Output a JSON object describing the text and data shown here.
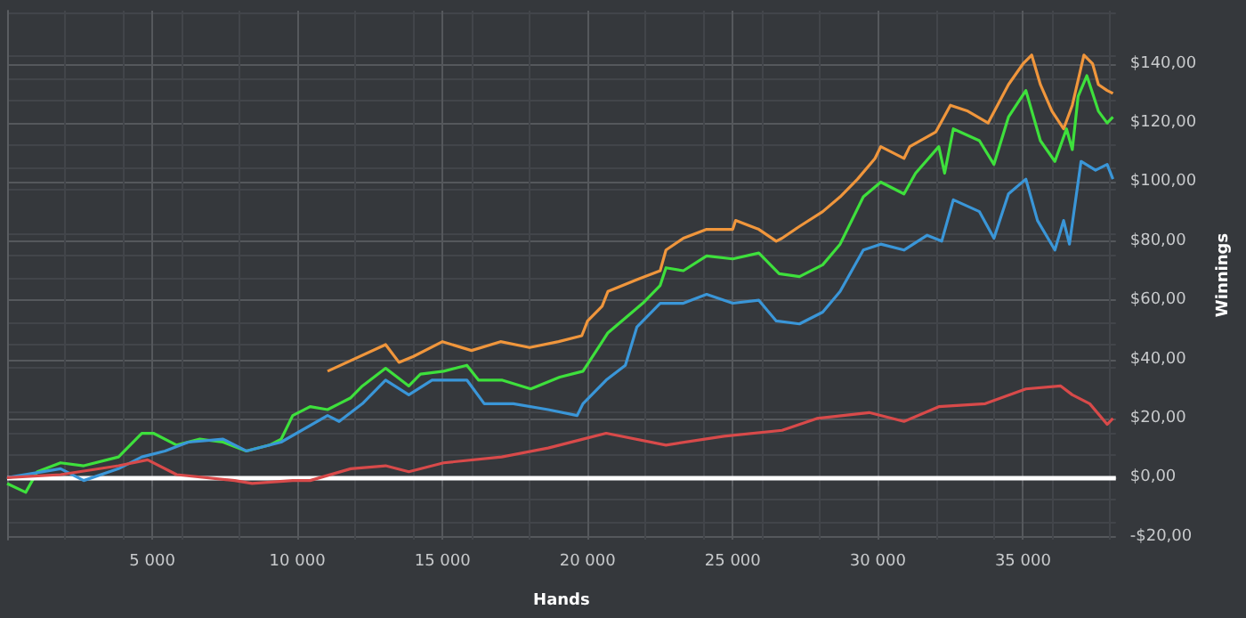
{
  "chart_data": {
    "type": "line",
    "xlabel": "Hands",
    "ylabel": "Winnings",
    "xlim": [
      0,
      38200
    ],
    "ylim": [
      -21,
      158
    ],
    "xticks": [
      {
        "value": 5000,
        "label": "5 000"
      },
      {
        "value": 10000,
        "label": "10 000"
      },
      {
        "value": 15000,
        "label": "15 000"
      },
      {
        "value": 20000,
        "label": "20 000"
      },
      {
        "value": 25000,
        "label": "25 000"
      },
      {
        "value": 30000,
        "label": "30 000"
      },
      {
        "value": 35000,
        "label": "35 000"
      }
    ],
    "yticks": [
      {
        "value": -20,
        "label": "-$20,00"
      },
      {
        "value": 0,
        "label": "$0,00"
      },
      {
        "value": 20,
        "label": "$20,00"
      },
      {
        "value": 40,
        "label": "$40,00"
      },
      {
        "value": 60,
        "label": "$60,00"
      },
      {
        "value": 80,
        "label": "$80,00"
      },
      {
        "value": 100,
        "label": "$100,00"
      },
      {
        "value": 120,
        "label": "$120,00"
      },
      {
        "value": 140,
        "label": "$140,00"
      }
    ],
    "grid": true,
    "line_style": "solid",
    "ref_lines": [
      {
        "axis": "y",
        "value": 0,
        "color": "#ffffff"
      }
    ],
    "series": [
      {
        "color": "#f0963c",
        "x": [
          11040,
          13040,
          13500,
          14000,
          15000,
          16000,
          17000,
          18000,
          19000,
          19800,
          20000,
          20500,
          20700,
          21700,
          22500,
          22700,
          23300,
          24100,
          25000,
          25100,
          25900,
          26500,
          26700,
          27300,
          28100,
          28700,
          29300,
          29900,
          30100,
          30900,
          31100,
          32000,
          32500,
          33100,
          33800,
          34500,
          35000,
          35300,
          35600,
          36000,
          36400,
          36700,
          37100,
          37400,
          37600,
          37900,
          38100
        ],
        "values": [
          36,
          45,
          39,
          41,
          46,
          43,
          46,
          44,
          46,
          48,
          53,
          58,
          63,
          67,
          70,
          77,
          81,
          84,
          84,
          87,
          84,
          80,
          81,
          85,
          90,
          95,
          101,
          108,
          112,
          108,
          112,
          117,
          126,
          124,
          120,
          133,
          140,
          143,
          133,
          124,
          118,
          126,
          143,
          140,
          133,
          131,
          130
        ]
      },
      {
        "color": "#3ee03c",
        "x": [
          0,
          640,
          1040,
          1840,
          2640,
          3840,
          4640,
          5040,
          5840,
          6640,
          7440,
          8240,
          9040,
          9440,
          9840,
          10440,
          11040,
          11440,
          11840,
          12240,
          13040,
          13840,
          14240,
          15040,
          15840,
          16240,
          17040,
          18040,
          19040,
          19840,
          20440,
          20700,
          21900,
          22500,
          22700,
          23300,
          24100,
          25000,
          25900,
          26600,
          27300,
          28100,
          28700,
          29500,
          30100,
          30900,
          31300,
          32100,
          32300,
          32600,
          33500,
          34000,
          34500,
          35100,
          35600,
          36100,
          36500,
          36700,
          36900,
          37200,
          37600,
          37900,
          38100
        ],
        "values": [
          -2,
          -5,
          2,
          5,
          4,
          7,
          15,
          15,
          11,
          13,
          12,
          9,
          11,
          13,
          21,
          24,
          23,
          25,
          27,
          31,
          37,
          31,
          35,
          36,
          38,
          33,
          33,
          30,
          34,
          36,
          45,
          49,
          59,
          65,
          71,
          70,
          75,
          74,
          76,
          69,
          68,
          72,
          79,
          95,
          100,
          96,
          103,
          112,
          103,
          118,
          114,
          106,
          122,
          131,
          114,
          107,
          118,
          111,
          129,
          136,
          124,
          120,
          122
        ]
      },
      {
        "color": "#3a96d8",
        "x": [
          0,
          1840,
          2640,
          3840,
          4640,
          5440,
          6240,
          7440,
          8240,
          9440,
          11040,
          11440,
          12240,
          13040,
          13840,
          14640,
          15840,
          16440,
          17440,
          18640,
          19640,
          19840,
          20640,
          21300,
          21700,
          22500,
          23300,
          24100,
          25000,
          25900,
          26500,
          27300,
          28100,
          28700,
          29500,
          30100,
          30900,
          31700,
          32200,
          32600,
          33500,
          34000,
          34500,
          35100,
          35500,
          36100,
          36400,
          36600,
          37000,
          37500,
          37900,
          38100
        ],
        "values": [
          0,
          3,
          -1,
          3,
          7,
          9,
          12,
          13,
          9,
          12,
          21,
          19,
          25,
          33,
          28,
          33,
          33,
          25,
          25,
          23,
          21,
          25,
          33,
          38,
          51,
          59,
          59,
          62,
          59,
          60,
          53,
          52,
          56,
          63,
          77,
          79,
          77,
          82,
          80,
          94,
          90,
          81,
          96,
          101,
          87,
          77,
          87,
          79,
          107,
          104,
          106,
          101
        ]
      },
      {
        "color": "#d84a4a",
        "x": [
          0,
          1840,
          3840,
          4840,
          5840,
          7840,
          8440,
          9840,
          10440,
          11840,
          13040,
          13840,
          15040,
          17040,
          18640,
          19840,
          20640,
          22700,
          24700,
          26700,
          27900,
          29700,
          30900,
          32100,
          33700,
          35100,
          36300,
          36700,
          37300,
          37900,
          38100
        ],
        "values": [
          0,
          1,
          4,
          6,
          1,
          -1,
          -2,
          -1,
          -1,
          3,
          4,
          2,
          5,
          7,
          10,
          13,
          15,
          11,
          14,
          16,
          20,
          22,
          19,
          24,
          25,
          30,
          31,
          28,
          25,
          18,
          20
        ]
      }
    ]
  }
}
